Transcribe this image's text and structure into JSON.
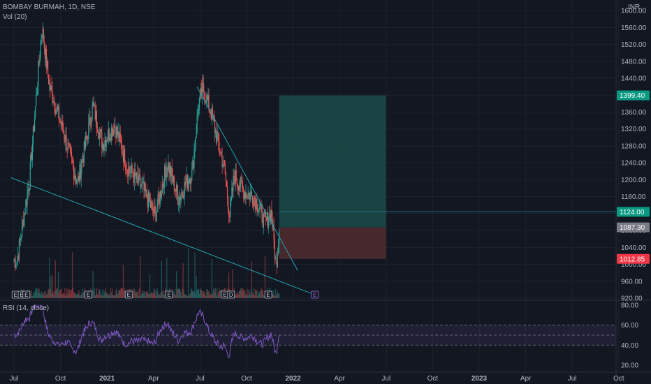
{
  "header": {
    "symbol_line": "BOMBAY BURMAH, 1D, NSE",
    "volume_label": "Vol (20)",
    "rsi_label": "RSI (14, close)",
    "currency": "INR"
  },
  "colors": {
    "background": "#131722",
    "grid": "#1e222d",
    "up": "#26a69a",
    "down": "#ef5350",
    "trendline": "#22a5b0",
    "target_zone": "#1b4a48",
    "stop_zone": "#4c2a2f",
    "rsi_line": "#7e57c2",
    "rsi_band": "#7e57c2",
    "price_label_green": "#089981",
    "price_label_gray": "#787b86",
    "price_label_red": "#f23645"
  },
  "chart_data": {
    "type": "candlestick",
    "price_axis": {
      "ticks": [
        "1600.00",
        "1560.00",
        "1520.00",
        "1480.00",
        "1440.00",
        "1400.00",
        "1360.00",
        "1320.00",
        "1280.00",
        "1240.00",
        "1200.00",
        "1160.00",
        "1120.00",
        "1080.00",
        "1040.00",
        "1000.00",
        "960.00",
        "920.00"
      ],
      "tick_values": [
        1600,
        1560,
        1520,
        1480,
        1440,
        1400,
        1360,
        1320,
        1280,
        1240,
        1200,
        1160,
        1120,
        1080,
        1040,
        1000,
        960,
        920
      ],
      "ylim": [
        920,
        1620
      ]
    },
    "price_labels": [
      {
        "text": "1399.40",
        "value": 1399.4,
        "color": "green"
      },
      {
        "text": "1124.00",
        "value": 1124,
        "color": "green"
      },
      {
        "text": "1087.30",
        "value": 1087.3,
        "color": "gray"
      },
      {
        "text": "1012.85",
        "value": 1012.85,
        "color": "red"
      }
    ],
    "rsi_axis": {
      "ticks": [
        "80.00",
        "60.00",
        "40.00",
        "20.00"
      ],
      "tick_values": [
        80,
        60,
        40,
        20
      ],
      "band": [
        40,
        60
      ],
      "ylim": [
        15,
        85
      ]
    },
    "time_axis": {
      "labels": [
        "Jul",
        "Oct",
        "2021",
        "Apr",
        "Jul",
        "Oct",
        "2022",
        "Apr",
        "Jul",
        "Oct",
        "2023",
        "Apr",
        "Jul",
        "Oct"
      ],
      "bold": [
        false,
        false,
        true,
        false,
        false,
        false,
        true,
        false,
        false,
        false,
        true,
        false,
        false,
        false
      ],
      "months_from_start": [
        0,
        3,
        6,
        9,
        12,
        15,
        18,
        21,
        24,
        27,
        30,
        33,
        36,
        39
      ]
    },
    "last_bar_month": 17.1,
    "key_points": [
      {
        "month": 0.2,
        "price": 1010
      },
      {
        "month": 1.0,
        "price": 1200
      },
      {
        "month": 1.8,
        "price": 1560
      },
      {
        "month": 2.3,
        "price": 1420
      },
      {
        "month": 3.3,
        "price": 1300
      },
      {
        "month": 4.1,
        "price": 1190
      },
      {
        "month": 5.1,
        "price": 1375
      },
      {
        "month": 5.7,
        "price": 1285
      },
      {
        "month": 6.5,
        "price": 1330
      },
      {
        "month": 7.3,
        "price": 1230
      },
      {
        "month": 8.3,
        "price": 1180
      },
      {
        "month": 9.1,
        "price": 1115
      },
      {
        "month": 9.9,
        "price": 1240
      },
      {
        "month": 10.6,
        "price": 1155
      },
      {
        "month": 11.5,
        "price": 1220
      },
      {
        "month": 11.9,
        "price": 1380
      },
      {
        "month": 12.2,
        "price": 1415
      },
      {
        "month": 12.7,
        "price": 1360
      },
      {
        "month": 13.6,
        "price": 1220
      },
      {
        "month": 13.9,
        "price": 1115
      },
      {
        "month": 14.2,
        "price": 1210
      },
      {
        "month": 14.9,
        "price": 1170
      },
      {
        "month": 15.5,
        "price": 1160
      },
      {
        "month": 16.2,
        "price": 1095
      },
      {
        "month": 16.6,
        "price": 1125
      },
      {
        "month": 16.9,
        "price": 990
      },
      {
        "month": 17.1,
        "price": 1087
      }
    ],
    "trendlines": [
      {
        "from": {
          "month": -0.2,
          "price": 1205
        },
        "to": {
          "month": 19.4,
          "price": 928
        }
      },
      {
        "from": {
          "month": 11.8,
          "price": 1420
        },
        "to": {
          "month": 18.3,
          "price": 985
        }
      }
    ],
    "position_tool": {
      "month_start": 17.1,
      "month_end": 24.0,
      "entry": 1087.3,
      "target": 1399.4,
      "stop": 1012.85
    },
    "horizontal_line": {
      "price": 1124
    },
    "earnings_markers": {
      "label": "E",
      "months": [
        0.1,
        0.5,
        0.8,
        4.8,
        7.4,
        10.0,
        13.6,
        16.4
      ],
      "future_months": [
        19.4
      ],
      "other": [
        {
          "label": "D",
          "month": 14.0
        }
      ]
    }
  }
}
